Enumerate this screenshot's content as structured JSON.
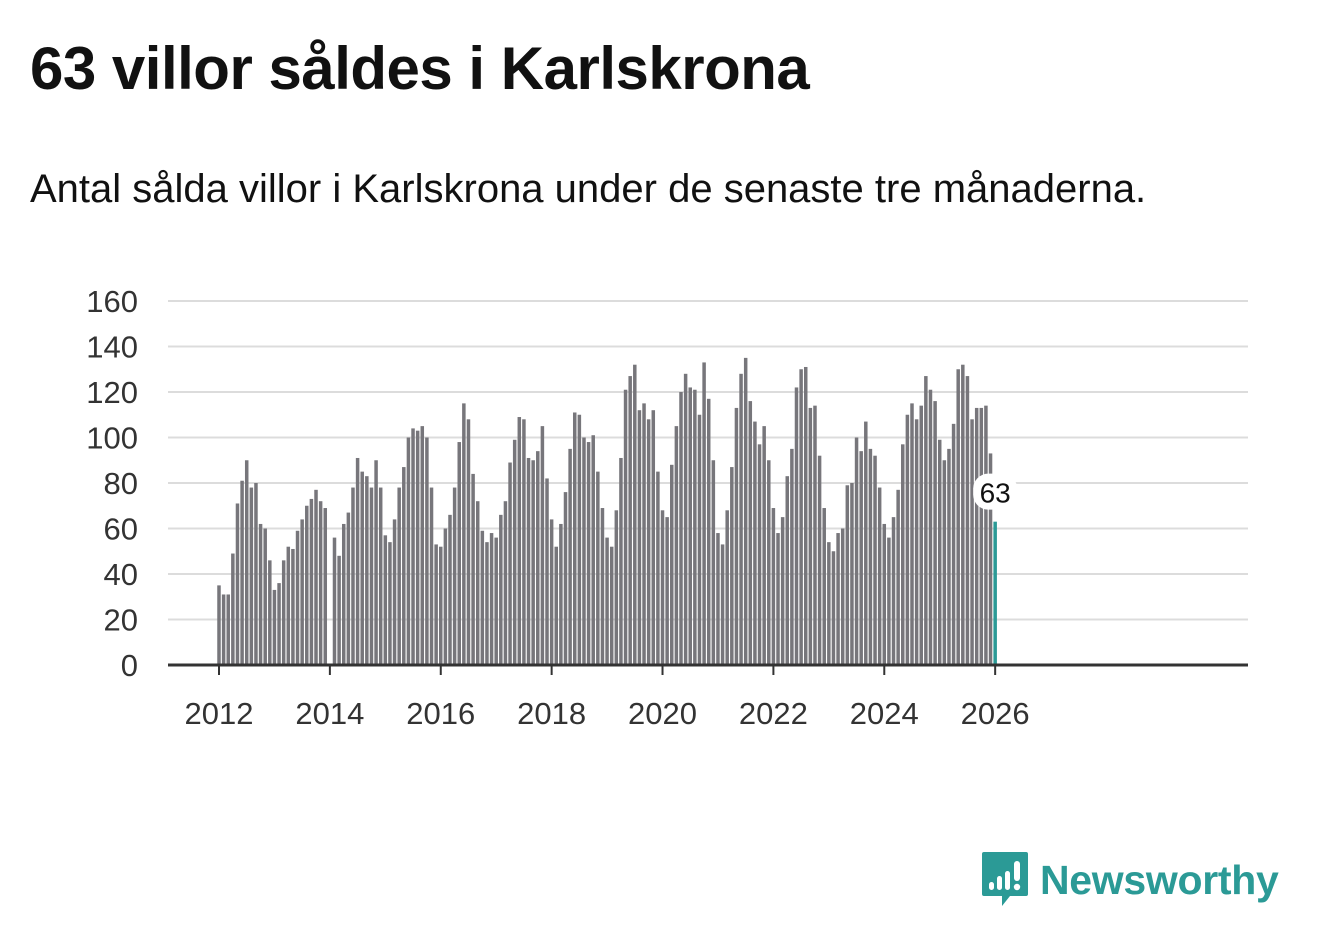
{
  "title": "63 villor såldes i Karlskrona",
  "subtitle": "Antal sålda villor i Karlskrona under de senaste tre månaderna.",
  "brand": {
    "name": "Newsworthy",
    "icon": "newsworthy-logo-icon"
  },
  "colors": {
    "bar": "#77767b",
    "highlight": "#2b9a96",
    "grid": "#dcdcdc",
    "axis": "#333333",
    "text": "#111111"
  },
  "chart_data": {
    "type": "bar",
    "title": "Antal sålda villor",
    "xlabel": "",
    "ylabel": "",
    "ylim": [
      0,
      160
    ],
    "yticks": [
      0,
      20,
      40,
      60,
      80,
      100,
      120,
      140,
      160
    ],
    "xticks": [
      "2012",
      "2014",
      "2016",
      "2018",
      "2020",
      "2022",
      "2024",
      "2026"
    ],
    "start": "2012-01",
    "values": [
      35,
      31,
      31,
      49,
      71,
      81,
      90,
      78,
      80,
      62,
      60,
      46,
      33,
      36,
      46,
      52,
      51,
      59,
      64,
      70,
      73,
      77,
      72,
      69,
      null,
      56,
      48,
      62,
      67,
      78,
      91,
      85,
      83,
      78,
      90,
      78,
      57,
      54,
      64,
      78,
      87,
      100,
      104,
      103,
      105,
      100,
      78,
      53,
      52,
      60,
      66,
      78,
      98,
      115,
      108,
      84,
      72,
      59,
      54,
      58,
      56,
      66,
      72,
      89,
      99,
      109,
      108,
      91,
      90,
      94,
      105,
      82,
      64,
      52,
      62,
      76,
      95,
      111,
      110,
      100,
      98,
      101,
      85,
      69,
      56,
      52,
      68,
      91,
      121,
      127,
      132,
      112,
      115,
      108,
      112,
      85,
      68,
      65,
      88,
      105,
      120,
      128,
      122,
      121,
      110,
      133,
      117,
      90,
      58,
      53,
      68,
      87,
      113,
      128,
      135,
      116,
      107,
      97,
      105,
      90,
      69,
      58,
      65,
      83,
      95,
      122,
      130,
      131,
      113,
      114,
      92,
      69,
      54,
      50,
      58,
      60,
      79,
      80,
      100,
      94,
      107,
      95,
      92,
      78,
      62,
      56,
      65,
      77,
      97,
      110,
      115,
      108,
      114,
      127,
      121,
      116,
      99,
      90,
      95,
      106,
      130,
      132,
      127,
      108,
      113,
      113,
      114,
      93,
      63
    ],
    "highlight": {
      "label": "63",
      "value": 63
    }
  }
}
